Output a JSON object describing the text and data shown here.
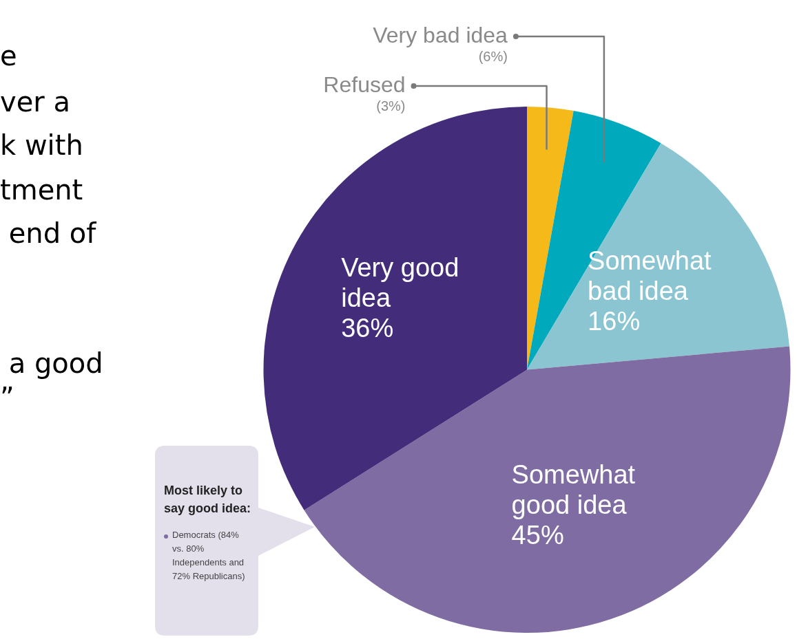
{
  "chart_data": {
    "type": "pie",
    "categories": [
      "Refused",
      "Very bad idea",
      "Somewhat bad idea",
      "Somewhat good idea",
      "Very good idea"
    ],
    "values": [
      3,
      6,
      16,
      45,
      36
    ],
    "colors": [
      "#f6b91a",
      "#00a9bb",
      "#8ac5d1",
      "#7f6ca2",
      "#432c7a"
    ],
    "value_labels": [
      "(3%)",
      "(6%)",
      "16%",
      "45%",
      "36%"
    ],
    "annotations": [
      "e",
      "ver a",
      "k with",
      "tment",
      " end of",
      " a good",
      "”",
      "Most likely to say good idea:",
      "Democrats (84% vs. 80% Independents and 72% Republicans)"
    ]
  }
}
